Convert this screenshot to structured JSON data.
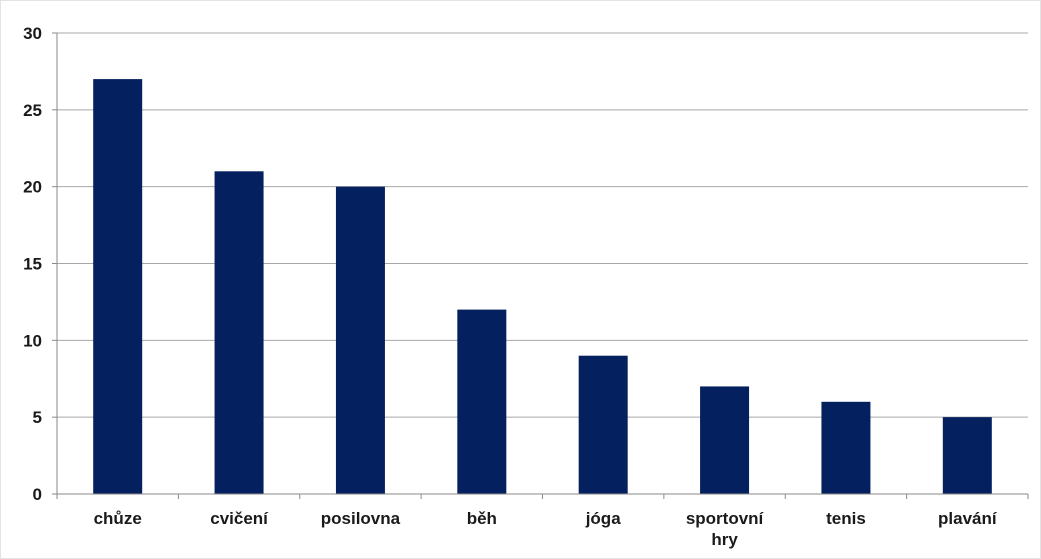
{
  "chart_data": {
    "type": "bar",
    "title": "",
    "xlabel": "",
    "ylabel": "",
    "categories": [
      [
        "chůze"
      ],
      [
        "cvičení"
      ],
      [
        "posilovna"
      ],
      [
        "běh"
      ],
      [
        "jóga"
      ],
      [
        "sportovní",
        "hry"
      ],
      [
        "tenis"
      ],
      [
        "plavání"
      ]
    ],
    "values": [
      27,
      21,
      20,
      12,
      9,
      7,
      6,
      5
    ],
    "ylim": [
      0,
      30
    ],
    "yticks": [
      "0",
      "5",
      "10",
      "15",
      "20",
      "25",
      "30"
    ],
    "ytick_values": [
      0,
      5,
      10,
      15,
      20,
      25,
      30
    ],
    "grid": true,
    "legend": "none",
    "colors": {
      "bar": "#05205e",
      "grid": "#a8a8a8",
      "axis": "#8a8a8a"
    }
  }
}
